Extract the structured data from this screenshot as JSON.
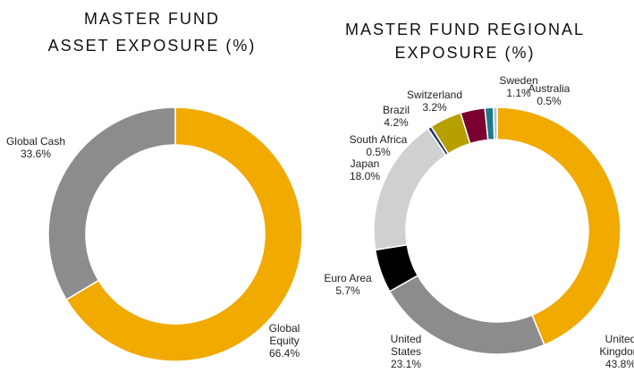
{
  "chart_data": [
    {
      "type": "donut",
      "title": [
        "MASTER FUND",
        "ASSET EXPOSURE (%)"
      ],
      "categories": [
        "Global Equity",
        "Global Cash"
      ],
      "values": [
        66.4,
        33.6
      ],
      "value_labels": [
        "66.4%",
        "33.6%"
      ],
      "colors": [
        "#f0aa00",
        "#8c8c8c"
      ]
    },
    {
      "type": "donut",
      "title": [
        "MASTER FUND REGIONAL",
        "EXPOSURE (%)"
      ],
      "categories": [
        "United Kingdom",
        "United States",
        "Euro Area",
        "Japan",
        "South Africa",
        "Brazil",
        "Switzerland",
        "Sweden",
        "Australia"
      ],
      "values": [
        43.8,
        23.1,
        5.7,
        18.0,
        0.5,
        4.2,
        3.2,
        1.1,
        0.5
      ],
      "value_labels": [
        "43.8%",
        "23.1%",
        "5.7%",
        "18.0%",
        "0.5%",
        "4.2%",
        "3.2%",
        "1.1%",
        "0.5%"
      ],
      "colors": [
        "#f0aa00",
        "#8c8c8c",
        "#000000",
        "#d0d0d0",
        "#1f3864",
        "#b5a000",
        "#7a0030",
        "#1a7a8a",
        "#a8c8e0"
      ]
    }
  ]
}
